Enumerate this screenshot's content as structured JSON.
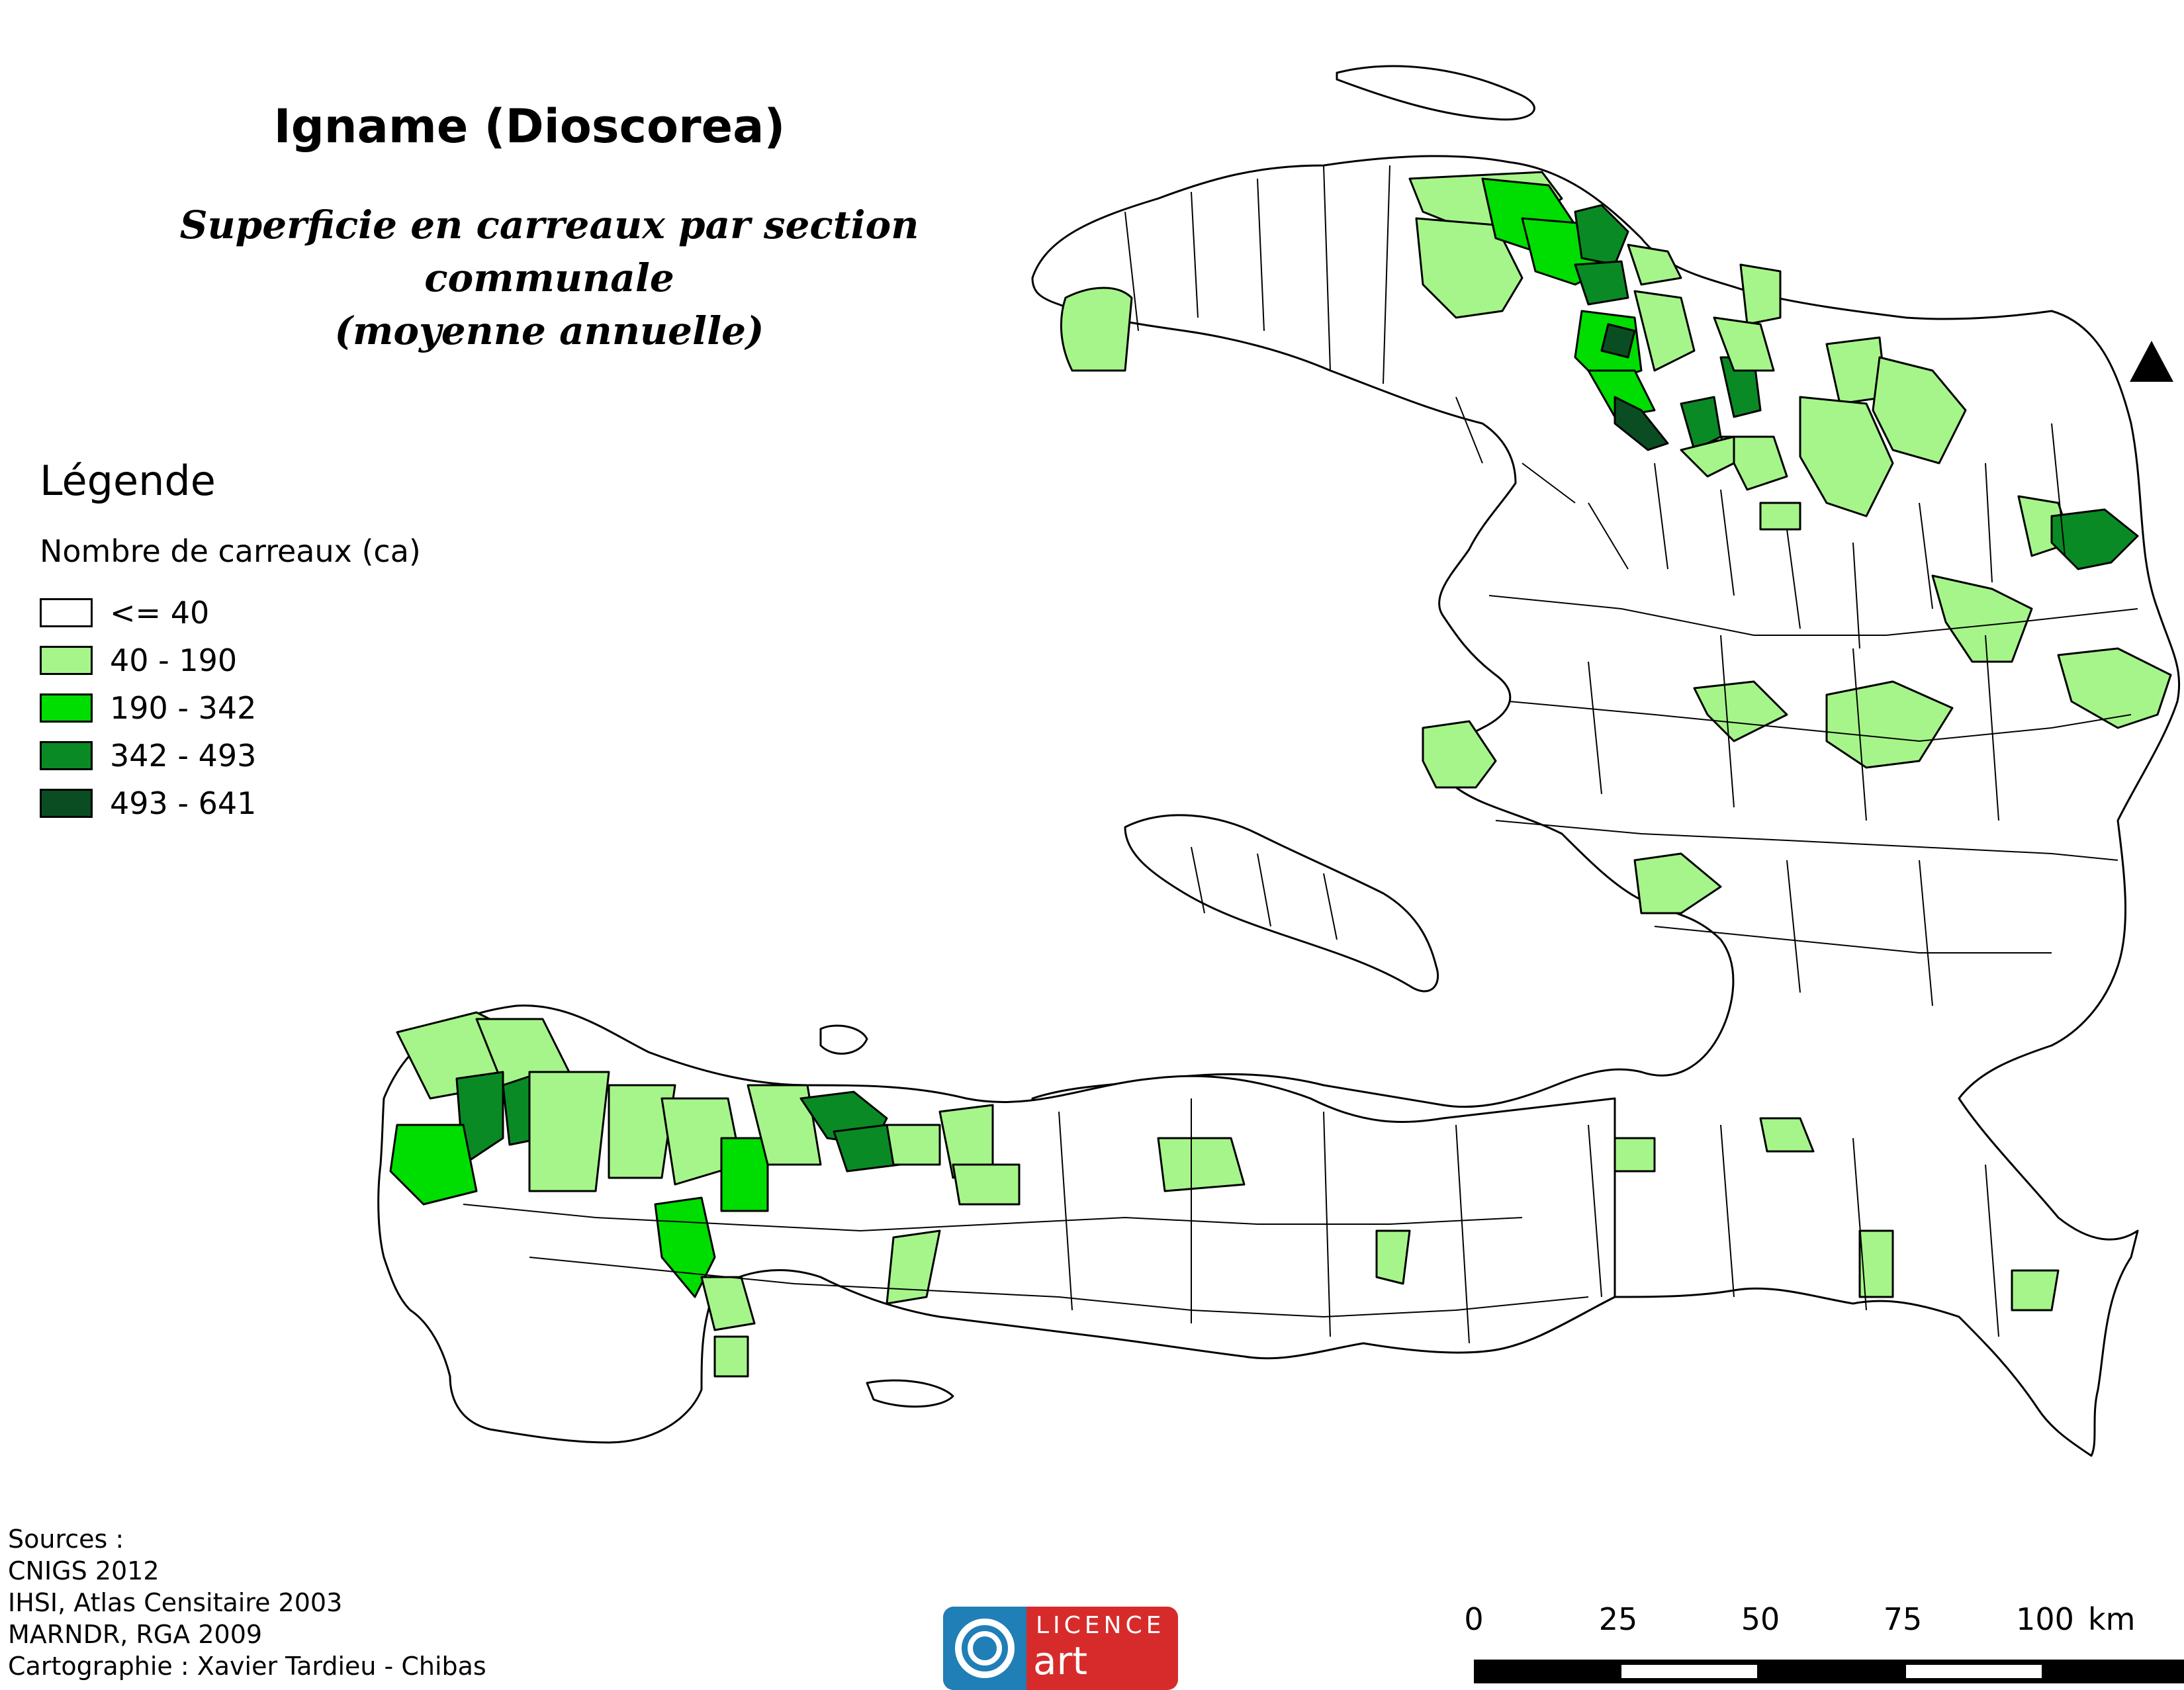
{
  "title": "Igname (Dioscorea)",
  "subtitle": {
    "line1": "Superficie en carreaux par section communale",
    "line2": "(moyenne annuelle)"
  },
  "legend": {
    "title": "Légende",
    "subtitle": "Nombre de carreaux (ca)",
    "classes": [
      {
        "label": "<= 40",
        "color": "#ffffff"
      },
      {
        "label": "40 - 190",
        "color": "#a6f58a"
      },
      {
        "label": "190 - 342",
        "color": "#00dd00"
      },
      {
        "label": "342 - 493",
        "color": "#0a8a24"
      },
      {
        "label": "493 - 641",
        "color": "#0b4d22"
      }
    ]
  },
  "sources": [
    "Sources :",
    "CNIGS 2012",
    "IHSI, Atlas Censitaire 2003",
    "MARNDR, RGA 2009",
    "Cartographie : Xavier Tardieu - Chibas"
  ],
  "logo": {
    "line1": "LICENCE",
    "line2": "art libre"
  },
  "scale_bar": {
    "ticks": [
      "0",
      "25",
      "50",
      "75",
      "100"
    ],
    "unit": "km"
  },
  "north_arrow_icon": "north-arrow-icon"
}
